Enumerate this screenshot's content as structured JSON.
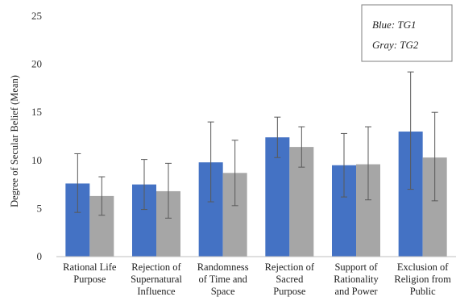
{
  "chart_data": {
    "type": "bar",
    "title": "",
    "xlabel": "",
    "ylabel": "Degree of Secular Belief (Mean)",
    "ylim": [
      0,
      25
    ],
    "yticks": [
      0,
      5,
      10,
      15,
      20,
      25
    ],
    "grid": false,
    "legend_position": "top-right",
    "legend_entries": [
      "Blue: TG1",
      "Gray: TG2"
    ],
    "categories": [
      [
        "Rational Life",
        "Purpose"
      ],
      [
        "Rejection of",
        "Supernatural",
        "Influence"
      ],
      [
        "Randomness",
        "of Time and",
        "Space"
      ],
      [
        "Rejection of",
        "Sacred",
        "Purpose"
      ],
      [
        "Support of",
        "Rationality",
        "and Power"
      ],
      [
        "Exclusion of",
        "Religion from",
        "Public"
      ]
    ],
    "series": [
      {
        "name": "TG1",
        "color": "#4472C4",
        "values": [
          7.6,
          7.5,
          9.8,
          12.4,
          9.5,
          13.0
        ],
        "error_low": [
          4.6,
          4.9,
          5.7,
          10.3,
          6.2,
          7.0
        ],
        "error_high": [
          10.7,
          10.1,
          14.0,
          14.5,
          12.8,
          19.2
        ]
      },
      {
        "name": "TG2",
        "color": "#A6A6A6",
        "values": [
          6.3,
          6.8,
          8.7,
          11.4,
          9.6,
          10.3
        ],
        "error_low": [
          4.3,
          4.0,
          5.3,
          9.3,
          5.9,
          5.8
        ],
        "error_high": [
          8.3,
          9.7,
          12.1,
          13.5,
          13.5,
          15.0
        ]
      }
    ]
  }
}
